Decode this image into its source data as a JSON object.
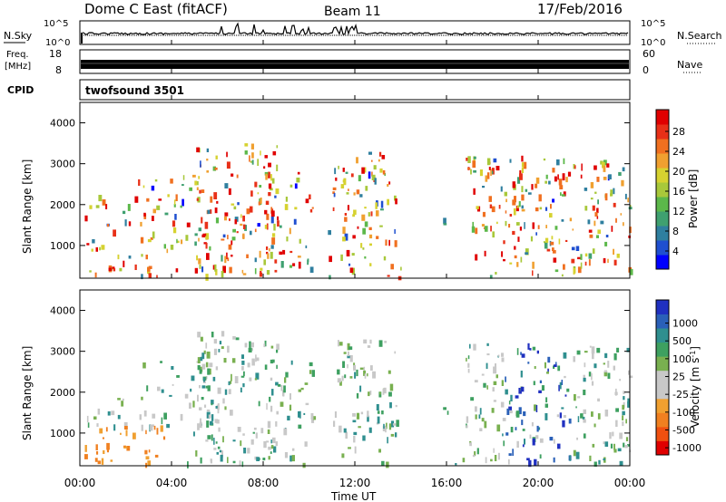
{
  "header": {
    "title": "Dome C East (fitACF)",
    "beam": "Beam 11",
    "date": "17/Feb/2016"
  },
  "panels": {
    "nsky": {
      "label": "N.Sky",
      "left_ticks": [
        "10^5",
        "10^0"
      ],
      "right_ticks": [
        "10^5",
        "10^0"
      ],
      "right_label": "N.Search"
    },
    "freq": {
      "label_line1": "Freq.",
      "label_line2": "[MHz]",
      "left_ticks": [
        "18",
        "8"
      ],
      "right_ticks": [
        "60",
        "0"
      ],
      "right_label": "Nave"
    },
    "cpid": {
      "label": "CPID",
      "text": "twofsound 3501"
    }
  },
  "chart_data": [
    {
      "type": "heatmap",
      "name": "power",
      "ylabel": "Slant Range [km]",
      "yticks": [
        "1000",
        "2000",
        "3000",
        "4000"
      ],
      "ylim": [
        200,
        4500
      ],
      "colorbar": {
        "label": "Power [dB]",
        "ticks": [
          "4",
          "8",
          "12",
          "16",
          "20",
          "24",
          "28"
        ],
        "colors": [
          "#0000ff",
          "#1f4fd0",
          "#2f7f9f",
          "#3fa070",
          "#5cb84a",
          "#a8c83a",
          "#d6d230",
          "#f0a030",
          "#f07020",
          "#e83018",
          "#e00000"
        ]
      }
    },
    {
      "type": "heatmap",
      "name": "velocity",
      "ylabel": "Slant Range [km]",
      "yticks": [
        "1000",
        "2000",
        "3000",
        "4000"
      ],
      "ylim": [
        200,
        4500
      ],
      "xlabel": "Time UT",
      "xticks": [
        "00:00",
        "04:00",
        "08:00",
        "12:00",
        "16:00",
        "20:00",
        "00:00"
      ],
      "colorbar": {
        "label": "Velocity [m s-1]",
        "ticks": [
          "1000",
          "500",
          "100",
          "25",
          "-25",
          "-100",
          "-500",
          "-1000"
        ],
        "colors": [
          "#2030c0",
          "#2a60b8",
          "#2f8f8f",
          "#3ea060",
          "#79b050",
          "#c8c8c8",
          "#c8c8c8",
          "#f0a030",
          "#f08020",
          "#f05010",
          "#e00000"
        ]
      }
    }
  ]
}
